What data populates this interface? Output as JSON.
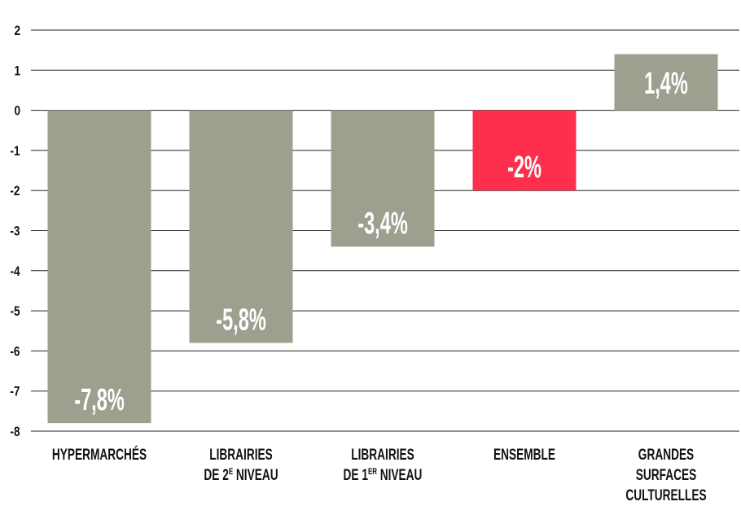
{
  "chart_data": {
    "type": "bar",
    "title": "",
    "xlabel": "",
    "ylabel": "",
    "ylim": [
      -8,
      2
    ],
    "yticks": [
      2,
      1,
      0,
      -1,
      -2,
      -3,
      -4,
      -5,
      -6,
      -7,
      -8
    ],
    "grid": true,
    "categories": [
      {
        "lines": [
          [
            {
              "t": "HYPERMARCHÉS"
            }
          ]
        ]
      },
      {
        "lines": [
          [
            {
              "t": "LIBRAIRIES"
            }
          ],
          [
            {
              "t": "DE 2"
            },
            {
              "t": "E",
              "sup": true
            },
            {
              "t": " NIVEAU"
            }
          ]
        ]
      },
      {
        "lines": [
          [
            {
              "t": "LIBRAIRIES"
            }
          ],
          [
            {
              "t": "DE 1"
            },
            {
              "t": "ER",
              "sup": true
            },
            {
              "t": " NIVEAU"
            }
          ]
        ]
      },
      {
        "lines": [
          [
            {
              "t": "ENSEMBLE"
            }
          ]
        ]
      },
      {
        "lines": [
          [
            {
              "t": "GRANDES"
            }
          ],
          [
            {
              "t": "SURFACES"
            }
          ],
          [
            {
              "t": "CULTURELLES"
            }
          ]
        ]
      }
    ],
    "values": [
      -7.8,
      -5.8,
      -3.4,
      -2,
      1.4
    ],
    "value_labels": [
      "-7,8%",
      "-5,8%",
      "-3,4%",
      "-2%",
      "1,4%"
    ],
    "colors": [
      "#9e9f8f",
      "#9e9f8f",
      "#9e9f8f",
      "#fd2f4d",
      "#9e9f8f"
    ],
    "gridline_color": "#222222"
  }
}
